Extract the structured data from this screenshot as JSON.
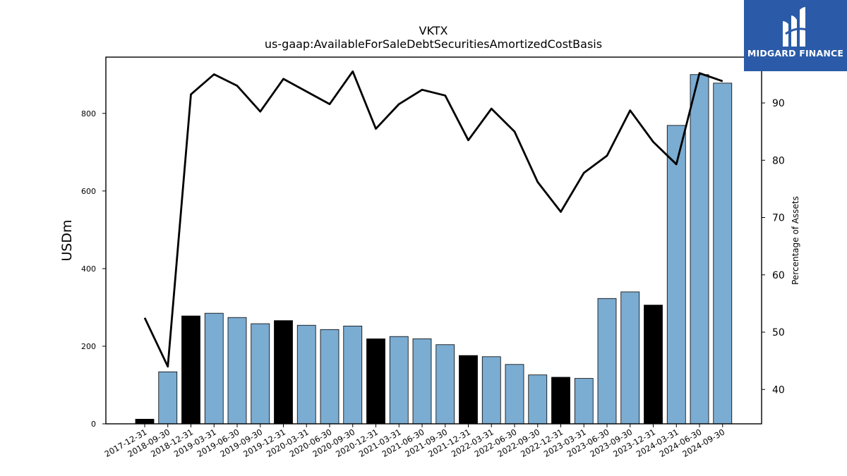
{
  "chart_data": {
    "type": "bar",
    "title": "VKTX",
    "subtitle": "us-gaap:AvailableForSaleDebtSecuritiesAmortizedCostBasis",
    "ylabel": "USDm",
    "y2label": "Percentage of Assets",
    "ylim": [
      0,
      945
    ],
    "y2lim": [
      34,
      98
    ],
    "yticks": [
      0,
      200,
      400,
      600,
      800
    ],
    "y2ticks": [
      40,
      50,
      60,
      70,
      80,
      90
    ],
    "categories": [
      "2017-12-31",
      "2018-09-30",
      "2018-12-31",
      "2019-03-31",
      "2019-06-30",
      "2019-09-30",
      "2019-12-31",
      "2020-03-31",
      "2020-06-30",
      "2020-09-30",
      "2020-12-31",
      "2021-03-31",
      "2021-06-30",
      "2021-09-30",
      "2021-12-31",
      "2022-03-31",
      "2022-06-30",
      "2022-09-30",
      "2022-12-31",
      "2023-03-31",
      "2023-06-30",
      "2023-09-30",
      "2023-12-31",
      "2024-03-31",
      "2024-06-30",
      "2024-09-30"
    ],
    "series": [
      {
        "values": [
          12,
          134,
          278,
          285,
          274,
          258,
          266,
          254,
          243,
          252,
          219,
          225,
          219,
          204,
          176,
          173,
          153,
          126,
          120,
          117,
          323,
          340,
          306,
          769,
          900,
          878
        ],
        "year_end": [
          true,
          false,
          true,
          false,
          false,
          false,
          true,
          false,
          false,
          false,
          true,
          false,
          false,
          false,
          true,
          false,
          false,
          false,
          true,
          false,
          false,
          false,
          true,
          false,
          false,
          false
        ],
        "color": "#7bacd2",
        "year_end_color": "#000000",
        "axis": "left"
      },
      {
        "values": [
          52.5,
          44.0,
          91.5,
          95.0,
          93.0,
          88.5,
          94.2,
          92.0,
          89.8,
          95.5,
          85.5,
          89.8,
          92.3,
          91.3,
          83.5,
          89.0,
          85.0,
          76.2,
          71.0,
          77.8,
          80.8,
          88.7,
          83.2,
          79.3,
          95.2,
          93.8
        ],
        "color": "#000000",
        "axis": "right"
      }
    ]
  },
  "logo": {
    "text": "MIDGARD FINANCE",
    "colors": {
      "background": "#2b5ba8",
      "foreground": "#ffffff"
    }
  }
}
